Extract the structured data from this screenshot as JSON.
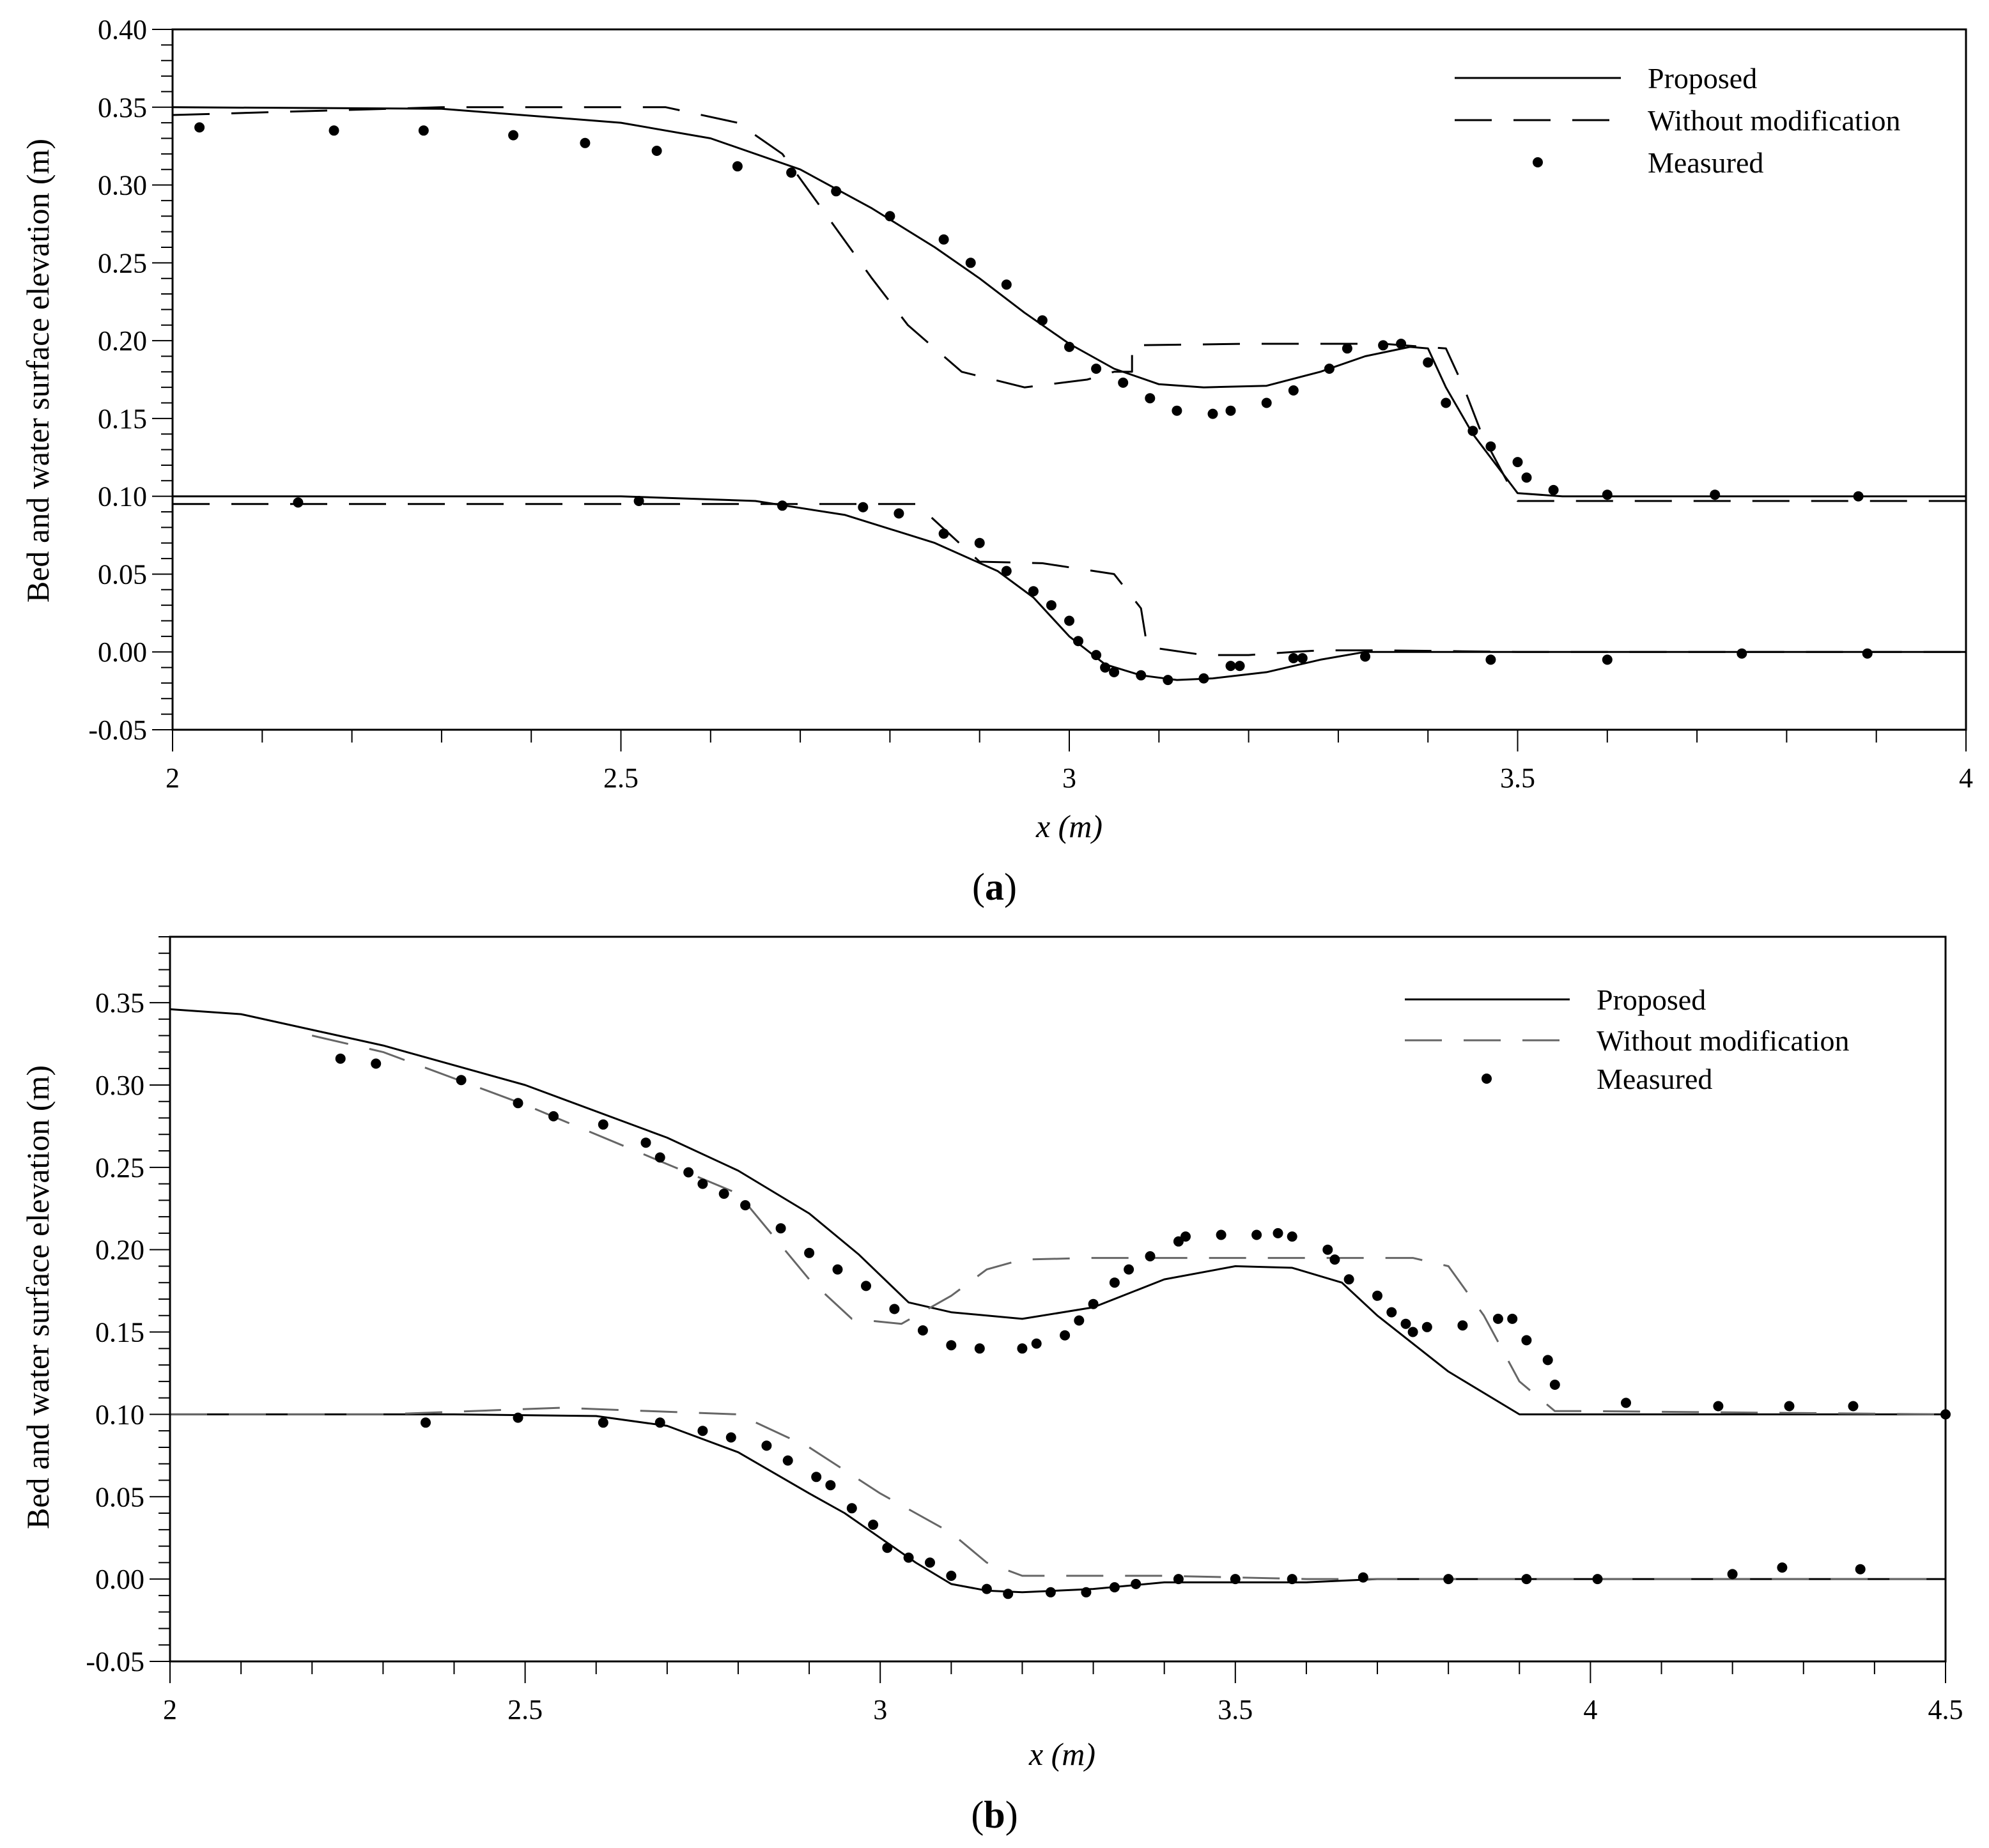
{
  "chart_data": [
    {
      "type": "line",
      "panel_label": "a",
      "xlabel": "x (m)",
      "ylabel": "Bed and water surface elevation (m)",
      "xlim": [
        2,
        4
      ],
      "ylim": [
        -0.05,
        0.4
      ],
      "xticks": [
        "2",
        "2.5",
        "3",
        "3.5",
        "4"
      ],
      "yticks": [
        "-0.05",
        "0.00",
        "0.05",
        "0.10",
        "0.15",
        "0.20",
        "0.25",
        "0.30",
        "0.35",
        "0.40"
      ],
      "legend": {
        "position": "top-right",
        "entries": [
          "Proposed",
          "Without modification",
          "Measured"
        ]
      },
      "series": [
        {
          "name": "Proposed",
          "style": "solid",
          "part": "water surface",
          "x": [
            2.0,
            2.3,
            2.5,
            2.6,
            2.7,
            2.78,
            2.85,
            2.9,
            2.95,
            3.0,
            3.05,
            3.1,
            3.15,
            3.22,
            3.28,
            3.33,
            3.38,
            3.4,
            3.42,
            3.45,
            3.5,
            3.55,
            3.6,
            4.0
          ],
          "y": [
            0.35,
            0.349,
            0.34,
            0.33,
            0.31,
            0.285,
            0.26,
            0.24,
            0.218,
            0.198,
            0.182,
            0.172,
            0.17,
            0.171,
            0.18,
            0.19,
            0.196,
            0.195,
            0.17,
            0.14,
            0.102,
            0.1,
            0.1,
            0.1
          ]
        },
        {
          "name": "Proposed",
          "style": "solid",
          "part": "bed",
          "x": [
            2.0,
            2.3,
            2.5,
            2.65,
            2.75,
            2.85,
            2.92,
            2.96,
            3.0,
            3.04,
            3.08,
            3.12,
            3.16,
            3.22,
            3.28,
            3.33,
            3.4,
            4.0
          ],
          "y": [
            0.1,
            0.1,
            0.1,
            0.097,
            0.088,
            0.07,
            0.052,
            0.035,
            0.01,
            -0.008,
            -0.015,
            -0.018,
            -0.017,
            -0.013,
            -0.005,
            0.0,
            0.0,
            0.0
          ]
        },
        {
          "name": "Without modification",
          "style": "dashed",
          "part": "water surface",
          "x": [
            2.0,
            2.3,
            2.55,
            2.63,
            2.68,
            2.73,
            2.78,
            2.82,
            2.88,
            2.95,
            3.02,
            3.05,
            3.07,
            3.07,
            3.2,
            3.35,
            3.42,
            3.44,
            3.46,
            3.5,
            4.0
          ],
          "y": [
            0.345,
            0.35,
            0.35,
            0.34,
            0.32,
            0.28,
            0.24,
            0.21,
            0.18,
            0.17,
            0.175,
            0.18,
            0.18,
            0.197,
            0.198,
            0.198,
            0.195,
            0.17,
            0.14,
            0.097,
            0.097
          ]
        },
        {
          "name": "Without modification",
          "style": "dashed",
          "part": "bed",
          "x": [
            2.0,
            2.55,
            2.83,
            2.9,
            2.97,
            3.05,
            3.08,
            3.085,
            3.09,
            3.15,
            3.2,
            3.25,
            3.28,
            3.35,
            3.5,
            3.55,
            4.0
          ],
          "y": [
            0.095,
            0.095,
            0.095,
            0.058,
            0.057,
            0.05,
            0.028,
            0.01,
            0.003,
            -0.002,
            -0.002,
            0.0,
            0.001,
            0.001,
            0.0,
            0.0,
            0.0
          ]
        }
      ],
      "measured": {
        "name": "Measured",
        "x": [
          2.03,
          2.18,
          2.28,
          2.38,
          2.46,
          2.54,
          2.63,
          2.69,
          2.74,
          2.8,
          2.86,
          2.89,
          2.93,
          2.97,
          3.0,
          3.03,
          3.06,
          3.09,
          3.12,
          3.16,
          3.18,
          3.22,
          3.25,
          3.29,
          3.31,
          3.35,
          3.37,
          3.4,
          3.42,
          3.45,
          3.47,
          3.5,
          3.51,
          3.54,
          3.6,
          3.72,
          3.88,
          2.14,
          2.52,
          2.68,
          2.77,
          2.81,
          2.86,
          2.9,
          2.93,
          2.96,
          2.98,
          3.0,
          3.01,
          3.03,
          3.04,
          3.05,
          3.08,
          3.11,
          3.15,
          3.18,
          3.19,
          3.25,
          3.26,
          3.33,
          3.47,
          3.6,
          3.75,
          3.89
        ],
        "y": [
          0.337,
          0.335,
          0.335,
          0.332,
          0.327,
          0.322,
          0.312,
          0.308,
          0.296,
          0.28,
          0.265,
          0.25,
          0.236,
          0.213,
          0.196,
          0.182,
          0.173,
          0.163,
          0.155,
          0.153,
          0.155,
          0.16,
          0.168,
          0.182,
          0.195,
          0.197,
          0.198,
          0.186,
          0.16,
          0.142,
          0.132,
          0.122,
          0.112,
          0.104,
          0.101,
          0.101,
          0.1,
          0.096,
          0.097,
          0.094,
          0.093,
          0.089,
          0.076,
          0.07,
          0.052,
          0.039,
          0.03,
          0.02,
          0.007,
          -0.002,
          -0.01,
          -0.013,
          -0.015,
          -0.018,
          -0.017,
          -0.009,
          -0.009,
          -0.004,
          -0.004,
          -0.003,
          -0.005,
          -0.005,
          -0.001,
          -0.001
        ]
      }
    },
    {
      "type": "line",
      "panel_label": "b",
      "xlabel": "x (m)",
      "ylabel": "Bed and water surface elevation (m)",
      "xlim": [
        2,
        4.5
      ],
      "ylim": [
        -0.05,
        0.4
      ],
      "xticks": [
        "2",
        "2.5",
        "3",
        "3.5",
        "4",
        "4.5"
      ],
      "yticks": [
        "-0.05",
        "0.00",
        "0.05",
        "0.10",
        "0.15",
        "0.20",
        "0.25",
        "0.30",
        "0.35"
      ],
      "legend": {
        "position": "top-right",
        "entries": [
          "Proposed",
          "Without modification",
          "Measured"
        ]
      },
      "series": [
        {
          "name": "Proposed",
          "style": "solid",
          "part": "water surface",
          "x": [
            2.0,
            2.1,
            2.3,
            2.5,
            2.7,
            2.8,
            2.9,
            2.97,
            3.04,
            3.1,
            3.2,
            3.3,
            3.4,
            3.5,
            3.58,
            3.65,
            3.7,
            3.8,
            3.9,
            4.0,
            4.5
          ],
          "y": [
            0.346,
            0.343,
            0.324,
            0.3,
            0.268,
            0.248,
            0.222,
            0.197,
            0.168,
            0.162,
            0.158,
            0.165,
            0.182,
            0.19,
            0.189,
            0.18,
            0.16,
            0.126,
            0.1,
            0.1,
            0.1
          ]
        },
        {
          "name": "Proposed",
          "style": "solid",
          "part": "bed",
          "x": [
            2.0,
            2.4,
            2.6,
            2.7,
            2.8,
            2.9,
            2.95,
            3.0,
            3.05,
            3.1,
            3.15,
            3.2,
            3.3,
            3.4,
            3.6,
            3.7,
            4.0,
            4.5
          ],
          "y": [
            0.1,
            0.1,
            0.099,
            0.093,
            0.077,
            0.052,
            0.04,
            0.025,
            0.01,
            -0.003,
            -0.007,
            -0.008,
            -0.006,
            -0.002,
            -0.002,
            0.0,
            0.0,
            0.0
          ]
        },
        {
          "name": "Without modification",
          "style": "dashed",
          "part": "water surface",
          "x": [
            2.2,
            2.3,
            2.5,
            2.7,
            2.8,
            2.9,
            2.96,
            3.03,
            3.1,
            3.15,
            3.2,
            3.3,
            3.5,
            3.62,
            3.75,
            3.8,
            3.85,
            3.9,
            3.95,
            4.0,
            4.5
          ],
          "y": [
            0.33,
            0.32,
            0.288,
            0.252,
            0.234,
            0.182,
            0.158,
            0.155,
            0.172,
            0.188,
            0.194,
            0.195,
            0.195,
            0.195,
            0.195,
            0.19,
            0.16,
            0.12,
            0.102,
            0.102,
            0.1
          ]
        },
        {
          "name": "Without modification",
          "style": "dashed",
          "part": "bed",
          "x": [
            2.0,
            2.3,
            2.55,
            2.8,
            2.9,
            3.0,
            3.1,
            3.15,
            3.2,
            3.3,
            3.4,
            3.6,
            3.7,
            4.0,
            4.5
          ],
          "y": [
            0.1,
            0.1,
            0.104,
            0.1,
            0.08,
            0.052,
            0.028,
            0.01,
            0.002,
            0.002,
            0.002,
            0.0,
            0.0,
            0.0,
            0.0
          ]
        }
      ],
      "measured": {
        "name": "Measured",
        "x": [
          2.24,
          2.29,
          2.41,
          2.49,
          2.54,
          2.61,
          2.67,
          2.69,
          2.73,
          2.75,
          2.78,
          2.81,
          2.86,
          2.9,
          2.94,
          2.98,
          3.02,
          3.06,
          3.1,
          3.14,
          3.2,
          3.22,
          3.26,
          3.28,
          3.3,
          3.33,
          3.35,
          3.38,
          3.42,
          3.43,
          3.48,
          3.53,
          3.56,
          3.58,
          3.63,
          3.64,
          3.66,
          3.7,
          3.72,
          3.74,
          3.75,
          3.77,
          3.82,
          3.87,
          3.89,
          3.91,
          3.94,
          3.95,
          4.05,
          4.18,
          4.28,
          4.37,
          4.5,
          2.36,
          2.49,
          2.61,
          2.69,
          2.75,
          2.79,
          2.84,
          2.87,
          2.91,
          2.93,
          2.96,
          2.99,
          3.01,
          3.04,
          3.07,
          3.1,
          3.15,
          3.18,
          3.24,
          3.29,
          3.33,
          3.36,
          3.42,
          3.5,
          3.58,
          3.68,
          3.8,
          3.91,
          4.01,
          4.2,
          4.27,
          4.38
        ],
        "y": [
          0.316,
          0.313,
          0.303,
          0.289,
          0.281,
          0.276,
          0.265,
          0.256,
          0.247,
          0.24,
          0.234,
          0.227,
          0.213,
          0.198,
          0.188,
          0.178,
          0.164,
          0.151,
          0.142,
          0.14,
          0.14,
          0.143,
          0.148,
          0.157,
          0.167,
          0.18,
          0.188,
          0.196,
          0.205,
          0.208,
          0.209,
          0.209,
          0.21,
          0.208,
          0.2,
          0.194,
          0.182,
          0.172,
          0.162,
          0.155,
          0.15,
          0.153,
          0.154,
          0.158,
          0.158,
          0.145,
          0.133,
          0.118,
          0.107,
          0.105,
          0.105,
          0.105,
          0.1,
          0.095,
          0.098,
          0.095,
          0.095,
          0.09,
          0.086,
          0.081,
          0.072,
          0.062,
          0.057,
          0.043,
          0.033,
          0.019,
          0.013,
          0.01,
          0.002,
          -0.006,
          -0.009,
          -0.008,
          -0.008,
          -0.005,
          -0.003,
          0.0,
          0.0,
          0.0,
          0.001,
          0.0,
          0.0,
          0.0,
          0.003,
          0.007,
          0.006
        ]
      }
    }
  ]
}
